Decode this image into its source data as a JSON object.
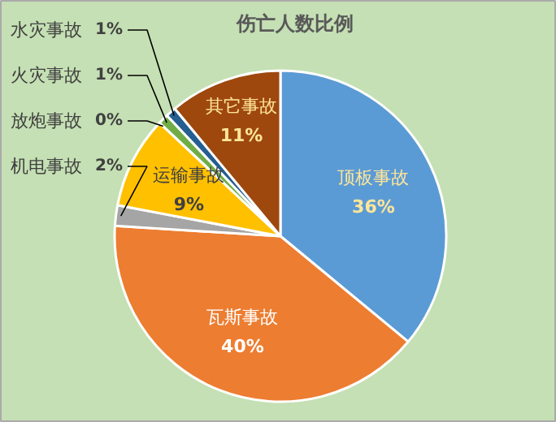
{
  "chart_data": {
    "type": "pie",
    "title": "伤亡人数比例",
    "categories": [
      "顶板事故",
      "瓦斯事故",
      "机电事故",
      "运输事故",
      "放炮事故",
      "火灾事故",
      "水灾事故",
      "其它事故"
    ],
    "values": [
      36,
      40,
      2,
      9,
      0,
      1,
      1,
      11
    ],
    "value_labels": [
      "36%",
      "40%",
      "2%",
      "9%",
      "0%",
      "1%",
      "1%",
      "11%"
    ],
    "colors": [
      "#5b9bd5",
      "#ed7d31",
      "#a5a5a5",
      "#ffc000",
      "#4472c4",
      "#70ad47",
      "#255e91",
      "#9e480e"
    ]
  }
}
